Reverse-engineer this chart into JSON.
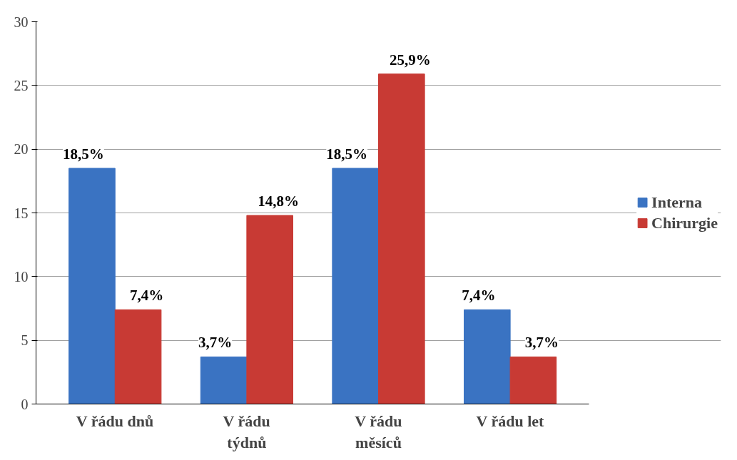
{
  "chart_data": {
    "type": "bar",
    "categories": [
      "V řádu dnů",
      "V řádu\ntýdnů",
      "V řádu\nměsíců",
      "V řádu let"
    ],
    "series": [
      {
        "name": "Interna",
        "color": "#3a73c2",
        "values": [
          18.5,
          3.7,
          18.5,
          7.4
        ],
        "value_labels": [
          "18,5%",
          "3,7%",
          "18,5%",
          "7,4%"
        ]
      },
      {
        "name": "Chirurgie",
        "color": "#c83a34",
        "values": [
          7.4,
          14.8,
          25.9,
          3.7
        ],
        "value_labels": [
          "7,4%",
          "14,8%",
          "25,9%",
          "3,7%"
        ]
      }
    ],
    "ylim": [
      0,
      30
    ],
    "yticks": [
      0,
      5,
      10,
      15,
      20,
      25,
      30
    ],
    "grid": "y",
    "legend": "right"
  }
}
